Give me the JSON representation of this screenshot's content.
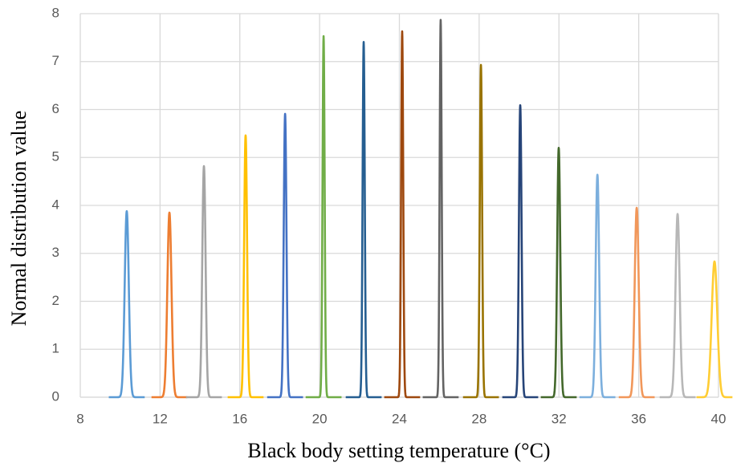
{
  "chart_data": {
    "type": "density",
    "x_label": "Black body setting temperature (°C)",
    "y_label": "Normal distribution value",
    "xlim": [
      8,
      40
    ],
    "xticks": [
      8,
      12,
      16,
      20,
      24,
      28,
      32,
      36,
      40
    ],
    "ylim": [
      0,
      8
    ],
    "yticks": [
      0,
      1,
      2,
      3,
      4,
      5,
      6,
      7,
      8
    ],
    "grid": true,
    "series": [
      {
        "color": "#5B9BD5",
        "mean": 10.33,
        "peak": 3.88
      },
      {
        "color": "#ED7D31",
        "mean": 12.47,
        "peak": 3.85
      },
      {
        "color": "#A5A5A5",
        "mean": 14.2,
        "peak": 4.82
      },
      {
        "color": "#FFC000",
        "mean": 16.29,
        "peak": 5.46
      },
      {
        "color": "#4472C4",
        "mean": 18.27,
        "peak": 5.91
      },
      {
        "color": "#70AD47",
        "mean": 20.2,
        "peak": 7.53
      },
      {
        "color": "#255E91",
        "mean": 22.21,
        "peak": 7.41
      },
      {
        "color": "#9E480E",
        "mean": 24.14,
        "peak": 7.63
      },
      {
        "color": "#636363",
        "mean": 26.07,
        "peak": 7.87
      },
      {
        "color": "#997300",
        "mean": 28.09,
        "peak": 6.93
      },
      {
        "color": "#264478",
        "mean": 30.06,
        "peak": 6.09
      },
      {
        "color": "#43682B",
        "mean": 31.99,
        "peak": 5.2
      },
      {
        "color": "#7CAFDD",
        "mean": 33.93,
        "peak": 4.64
      },
      {
        "color": "#F1975A",
        "mean": 35.9,
        "peak": 3.95
      },
      {
        "color": "#B7B7B7",
        "mean": 37.95,
        "peak": 3.82
      },
      {
        "color": "#FFCD33",
        "mean": 39.8,
        "peak": 2.83
      }
    ]
  }
}
